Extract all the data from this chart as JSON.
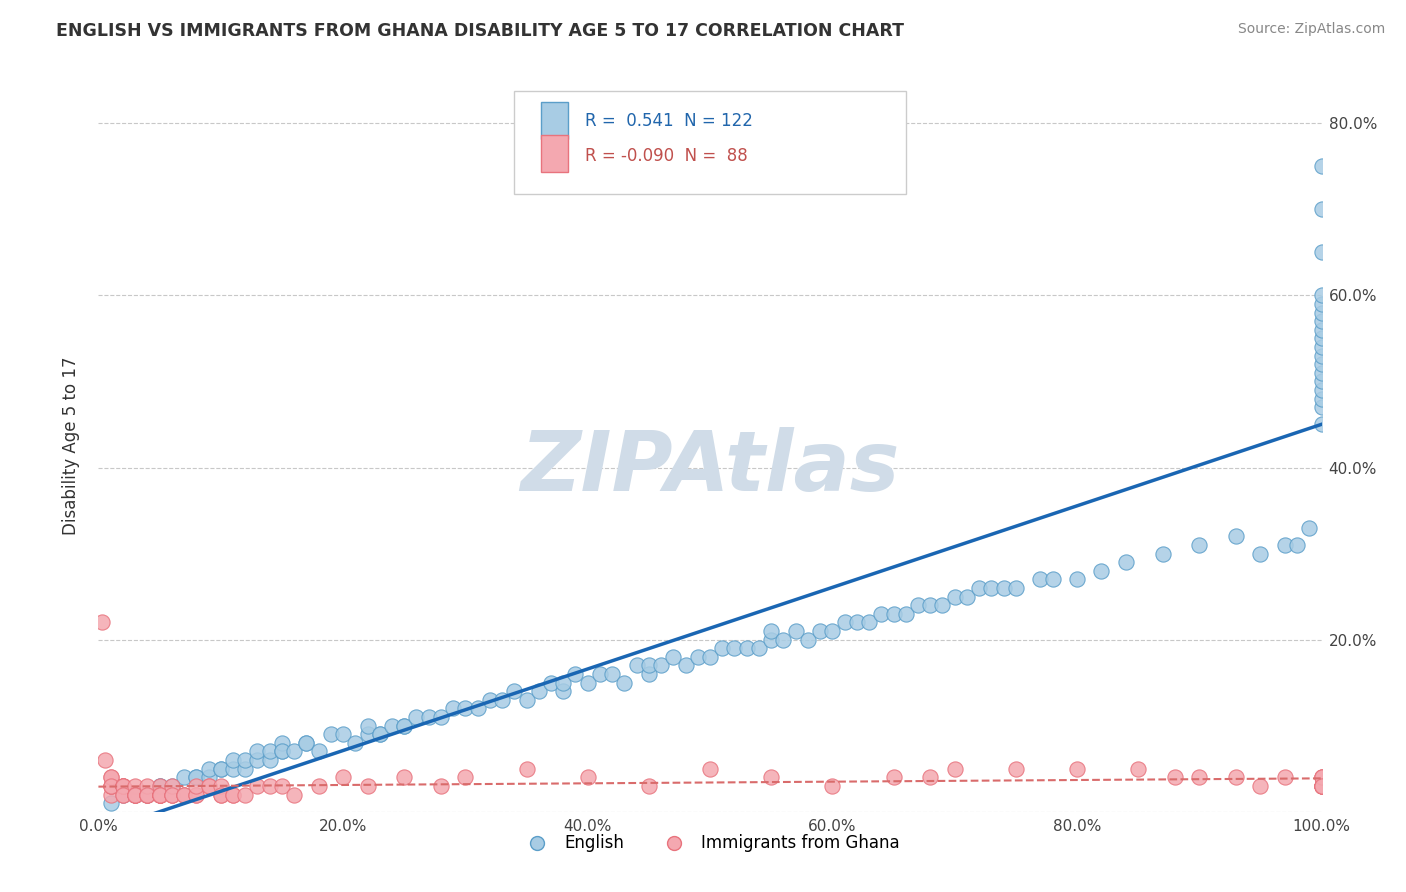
{
  "title": "ENGLISH VS IMMIGRANTS FROM GHANA DISABILITY AGE 5 TO 17 CORRELATION CHART",
  "source": "Source: ZipAtlas.com",
  "ylabel": "Disability Age 5 to 17",
  "xlim": [
    0,
    100
  ],
  "ylim": [
    0,
    85
  ],
  "xticks": [
    0,
    20,
    40,
    60,
    80,
    100
  ],
  "xticklabels": [
    "0.0%",
    "20.0%",
    "40.0%",
    "60.0%",
    "80.0%",
    "100.0%"
  ],
  "yticks_right": [
    0,
    20,
    40,
    60,
    80
  ],
  "yticklabels_right": [
    "",
    "20.0%",
    "40.0%",
    "60.0%",
    "80.0%"
  ],
  "legend_r1": "R =  0.541",
  "legend_n1": "N = 122",
  "legend_r2": "R = -0.090",
  "legend_n2": "N =  88",
  "english_color": "#a8cce4",
  "english_edge": "#5b9ec9",
  "ghana_color": "#f4a8b0",
  "ghana_edge": "#e8737d",
  "trendline1_color": "#1a66b3",
  "trendline2_color": "#d96b6b",
  "legend_text_color1": "#2166ac",
  "legend_text_color2": "#c0504d",
  "watermark_color": "#d0dce8",
  "background": "#ffffff",
  "grid_color": "#c8c8c8",
  "english_x": [
    1,
    2,
    3,
    4,
    5,
    5,
    6,
    7,
    8,
    8,
    9,
    9,
    10,
    10,
    11,
    11,
    12,
    12,
    13,
    13,
    14,
    14,
    15,
    15,
    15,
    16,
    17,
    17,
    18,
    19,
    20,
    21,
    22,
    22,
    23,
    23,
    24,
    25,
    25,
    26,
    27,
    28,
    29,
    30,
    31,
    32,
    33,
    34,
    35,
    36,
    37,
    38,
    38,
    39,
    40,
    41,
    42,
    43,
    44,
    45,
    45,
    46,
    47,
    48,
    49,
    50,
    51,
    52,
    53,
    54,
    55,
    55,
    56,
    57,
    58,
    59,
    60,
    61,
    62,
    63,
    64,
    65,
    66,
    67,
    68,
    69,
    70,
    71,
    72,
    73,
    74,
    75,
    77,
    78,
    80,
    82,
    84,
    87,
    90,
    93,
    95,
    97,
    98,
    99,
    100,
    100,
    100,
    100,
    100,
    100,
    100,
    100,
    100,
    100,
    100,
    100,
    100,
    100,
    100,
    100,
    100,
    100
  ],
  "english_y": [
    1,
    2,
    2,
    2,
    3,
    3,
    3,
    4,
    4,
    4,
    4,
    5,
    5,
    5,
    5,
    6,
    5,
    6,
    6,
    7,
    6,
    7,
    7,
    8,
    7,
    7,
    8,
    8,
    7,
    9,
    9,
    8,
    9,
    10,
    9,
    9,
    10,
    10,
    10,
    11,
    11,
    11,
    12,
    12,
    12,
    13,
    13,
    14,
    13,
    14,
    15,
    14,
    15,
    16,
    15,
    16,
    16,
    15,
    17,
    16,
    17,
    17,
    18,
    17,
    18,
    18,
    19,
    19,
    19,
    19,
    20,
    21,
    20,
    21,
    20,
    21,
    21,
    22,
    22,
    22,
    23,
    23,
    23,
    24,
    24,
    24,
    25,
    25,
    26,
    26,
    26,
    26,
    27,
    27,
    27,
    28,
    29,
    30,
    31,
    32,
    30,
    31,
    31,
    33,
    45,
    47,
    48,
    49,
    50,
    51,
    52,
    53,
    54,
    55,
    56,
    57,
    58,
    59,
    60,
    65,
    70,
    75
  ],
  "ghana_x": [
    0.3,
    0.5,
    1,
    1,
    1,
    1,
    1,
    1,
    2,
    2,
    2,
    2,
    2,
    2,
    2,
    3,
    3,
    3,
    3,
    3,
    3,
    4,
    4,
    4,
    4,
    4,
    5,
    5,
    5,
    5,
    5,
    5,
    5,
    5,
    6,
    6,
    6,
    6,
    7,
    7,
    7,
    8,
    8,
    8,
    9,
    9,
    10,
    10,
    10,
    11,
    11,
    12,
    13,
    14,
    15,
    16,
    18,
    20,
    22,
    25,
    28,
    30,
    35,
    40,
    45,
    50,
    55,
    60,
    65,
    68,
    70,
    75,
    80,
    85,
    88,
    90,
    93,
    95,
    97,
    100,
    100,
    100,
    100,
    100,
    100,
    100,
    100,
    100
  ],
  "ghana_y": [
    22,
    6,
    2,
    3,
    3,
    4,
    4,
    3,
    2,
    3,
    3,
    3,
    3,
    3,
    2,
    2,
    2,
    3,
    2,
    2,
    2,
    2,
    2,
    2,
    3,
    2,
    2,
    2,
    2,
    2,
    2,
    3,
    2,
    2,
    2,
    2,
    3,
    2,
    2,
    2,
    2,
    2,
    2,
    3,
    3,
    3,
    2,
    3,
    2,
    2,
    2,
    2,
    3,
    3,
    3,
    2,
    3,
    4,
    3,
    4,
    3,
    4,
    5,
    4,
    3,
    5,
    4,
    3,
    4,
    4,
    5,
    5,
    5,
    5,
    4,
    4,
    4,
    3,
    4,
    3,
    3,
    4,
    3,
    4,
    3,
    3,
    4,
    3
  ]
}
